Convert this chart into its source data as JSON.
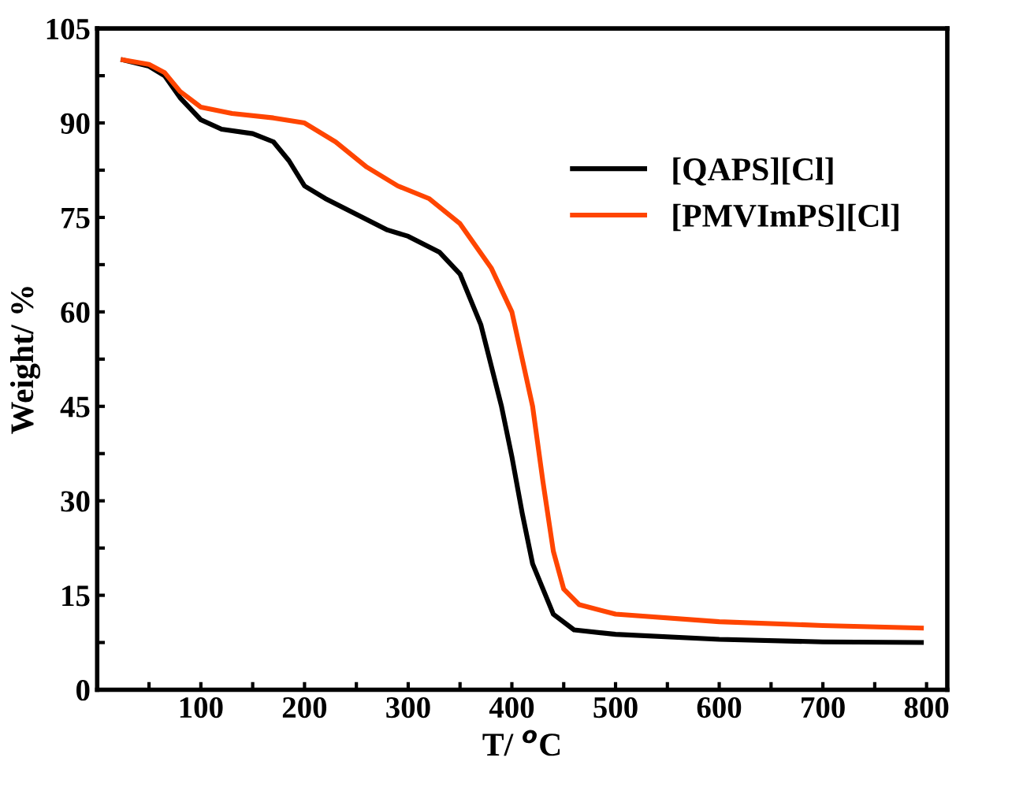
{
  "chart_data": {
    "type": "line",
    "xlabel": "T/ $^{o}$C",
    "ylabel": "Weight/ %",
    "xlim": [
      0,
      820
    ],
    "ylim": [
      0,
      105
    ],
    "xticks": [
      {
        "value": 50,
        "label": null
      },
      100,
      {
        "value": 150,
        "label": null
      },
      200,
      {
        "value": 250,
        "label": null
      },
      300,
      {
        "value": 350,
        "label": null
      },
      400,
      {
        "value": 450,
        "label": null
      },
      500,
      {
        "value": 550,
        "label": null
      },
      600,
      {
        "value": 650,
        "label": null
      },
      700,
      {
        "value": 750,
        "label": null
      },
      800
    ],
    "yticks": [
      0,
      {
        "value": 7.5,
        "label": null
      },
      15,
      {
        "value": 22.5,
        "label": null
      },
      30,
      {
        "value": 37.5,
        "label": null
      },
      45,
      {
        "value": 52.5,
        "label": null
      },
      60,
      {
        "value": 67.5,
        "label": null
      },
      75,
      {
        "value": 82.5,
        "label": null
      },
      90,
      {
        "value": 97.5,
        "label": null
      },
      105
    ],
    "grid": false,
    "legend": "top right",
    "marker": "none",
    "line_style": "solid",
    "series": [
      {
        "name": "[QAPS][Cl]",
        "color": "#000000",
        "x": [
          25,
          50,
          65,
          80,
          100,
          120,
          150,
          170,
          185,
          200,
          220,
          250,
          280,
          300,
          330,
          350,
          370,
          390,
          400,
          410,
          420,
          440,
          460,
          500,
          600,
          700,
          795
        ],
        "values": [
          100,
          99,
          97.5,
          94,
          90.5,
          89,
          88.3,
          87,
          84,
          80,
          78,
          75.5,
          73,
          72,
          69.5,
          66,
          58,
          45,
          37,
          28,
          20,
          12,
          9.5,
          8.8,
          8,
          7.6,
          7.5
        ]
      },
      {
        "name": "[PMVImPS][Cl]",
        "color": "#ff4500",
        "x": [
          25,
          50,
          65,
          80,
          100,
          130,
          170,
          200,
          230,
          260,
          290,
          320,
          350,
          380,
          400,
          420,
          430,
          440,
          450,
          465,
          500,
          600,
          700,
          795
        ],
        "values": [
          100,
          99.3,
          98,
          95,
          92.5,
          91.5,
          90.8,
          90,
          87,
          83,
          80,
          78,
          74,
          67,
          60,
          45,
          33,
          22,
          16,
          13.5,
          12,
          10.8,
          10.2,
          9.8
        ]
      }
    ]
  }
}
